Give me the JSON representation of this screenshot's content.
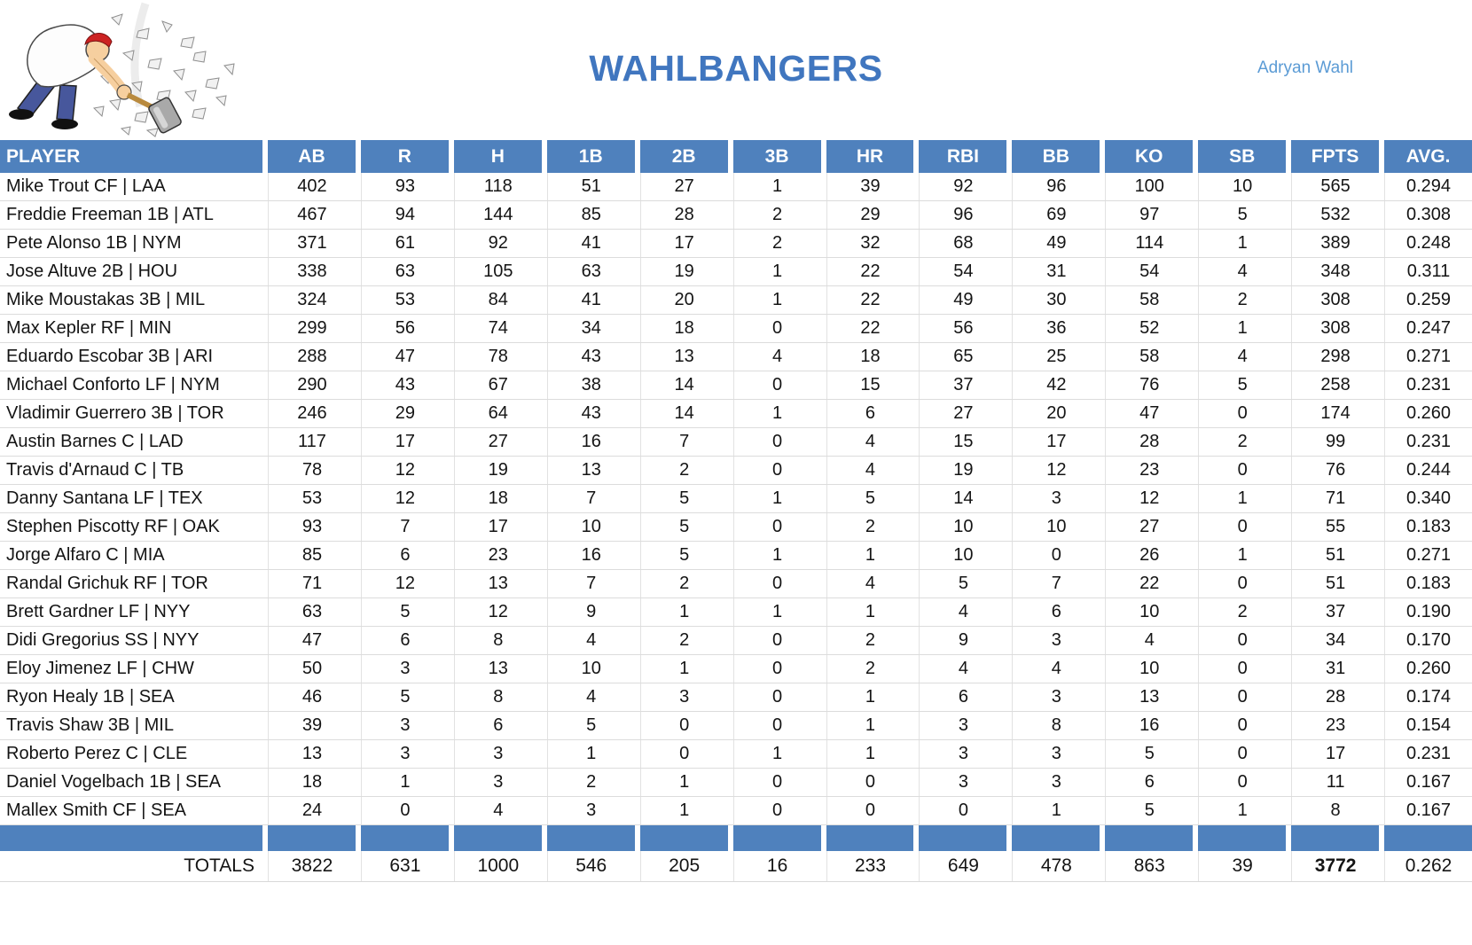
{
  "header": {
    "team_name": "WAHLBANGERS",
    "owner_name": "Adryan Wahl"
  },
  "colors": {
    "accent": "#4f81bd",
    "title_blue": "#4076bf",
    "owner_blue": "#5b9bd5"
  },
  "icons": {
    "logo": "hammer-man-smashing-rocks"
  },
  "table": {
    "columns": [
      "PLAYER",
      "AB",
      "R",
      "H",
      "1B",
      "2B",
      "3B",
      "HR",
      "RBI",
      "BB",
      "KO",
      "SB",
      "FPTS",
      "AVG."
    ],
    "rows": [
      {
        "player": "Mike Trout CF | LAA",
        "stats": [
          "402",
          "93",
          "118",
          "51",
          "27",
          "1",
          "39",
          "92",
          "96",
          "100",
          "10",
          "565",
          "0.294"
        ]
      },
      {
        "player": "Freddie Freeman 1B | ATL",
        "stats": [
          "467",
          "94",
          "144",
          "85",
          "28",
          "2",
          "29",
          "96",
          "69",
          "97",
          "5",
          "532",
          "0.308"
        ]
      },
      {
        "player": "Pete Alonso 1B | NYM",
        "stats": [
          "371",
          "61",
          "92",
          "41",
          "17",
          "2",
          "32",
          "68",
          "49",
          "114",
          "1",
          "389",
          "0.248"
        ]
      },
      {
        "player": "Jose Altuve 2B | HOU",
        "stats": [
          "338",
          "63",
          "105",
          "63",
          "19",
          "1",
          "22",
          "54",
          "31",
          "54",
          "4",
          "348",
          "0.311"
        ]
      },
      {
        "player": "Mike Moustakas 3B | MIL",
        "stats": [
          "324",
          "53",
          "84",
          "41",
          "20",
          "1",
          "22",
          "49",
          "30",
          "58",
          "2",
          "308",
          "0.259"
        ]
      },
      {
        "player": "Max Kepler RF | MIN",
        "stats": [
          "299",
          "56",
          "74",
          "34",
          "18",
          "0",
          "22",
          "56",
          "36",
          "52",
          "1",
          "308",
          "0.247"
        ]
      },
      {
        "player": "Eduardo Escobar 3B | ARI",
        "stats": [
          "288",
          "47",
          "78",
          "43",
          "13",
          "4",
          "18",
          "65",
          "25",
          "58",
          "4",
          "298",
          "0.271"
        ]
      },
      {
        "player": "Michael Conforto LF | NYM",
        "stats": [
          "290",
          "43",
          "67",
          "38",
          "14",
          "0",
          "15",
          "37",
          "42",
          "76",
          "5",
          "258",
          "0.231"
        ]
      },
      {
        "player": "Vladimir Guerrero 3B | TOR",
        "stats": [
          "246",
          "29",
          "64",
          "43",
          "14",
          "1",
          "6",
          "27",
          "20",
          "47",
          "0",
          "174",
          "0.260"
        ]
      },
      {
        "player": "Austin Barnes C | LAD",
        "stats": [
          "117",
          "17",
          "27",
          "16",
          "7",
          "0",
          "4",
          "15",
          "17",
          "28",
          "2",
          "99",
          "0.231"
        ]
      },
      {
        "player": "Travis d'Arnaud C | TB",
        "stats": [
          "78",
          "12",
          "19",
          "13",
          "2",
          "0",
          "4",
          "19",
          "12",
          "23",
          "0",
          "76",
          "0.244"
        ]
      },
      {
        "player": "Danny Santana LF | TEX",
        "stats": [
          "53",
          "12",
          "18",
          "7",
          "5",
          "1",
          "5",
          "14",
          "3",
          "12",
          "1",
          "71",
          "0.340"
        ]
      },
      {
        "player": "Stephen Piscotty RF | OAK",
        "stats": [
          "93",
          "7",
          "17",
          "10",
          "5",
          "0",
          "2",
          "10",
          "10",
          "27",
          "0",
          "55",
          "0.183"
        ]
      },
      {
        "player": "Jorge Alfaro C | MIA",
        "stats": [
          "85",
          "6",
          "23",
          "16",
          "5",
          "1",
          "1",
          "10",
          "0",
          "26",
          "1",
          "51",
          "0.271"
        ]
      },
      {
        "player": "Randal Grichuk RF | TOR",
        "stats": [
          "71",
          "12",
          "13",
          "7",
          "2",
          "0",
          "4",
          "5",
          "7",
          "22",
          "0",
          "51",
          "0.183"
        ]
      },
      {
        "player": "Brett Gardner LF | NYY",
        "stats": [
          "63",
          "5",
          "12",
          "9",
          "1",
          "1",
          "1",
          "4",
          "6",
          "10",
          "2",
          "37",
          "0.190"
        ]
      },
      {
        "player": "Didi Gregorius SS | NYY",
        "stats": [
          "47",
          "6",
          "8",
          "4",
          "2",
          "0",
          "2",
          "9",
          "3",
          "4",
          "0",
          "34",
          "0.170"
        ]
      },
      {
        "player": "Eloy Jimenez LF | CHW",
        "stats": [
          "50",
          "3",
          "13",
          "10",
          "1",
          "0",
          "2",
          "4",
          "4",
          "10",
          "0",
          "31",
          "0.260"
        ]
      },
      {
        "player": "Ryon Healy 1B | SEA",
        "stats": [
          "46",
          "5",
          "8",
          "4",
          "3",
          "0",
          "1",
          "6",
          "3",
          "13",
          "0",
          "28",
          "0.174"
        ]
      },
      {
        "player": "Travis Shaw 3B | MIL",
        "stats": [
          "39",
          "3",
          "6",
          "5",
          "0",
          "0",
          "1",
          "3",
          "8",
          "16",
          "0",
          "23",
          "0.154"
        ]
      },
      {
        "player": "Roberto Perez C | CLE",
        "stats": [
          "13",
          "3",
          "3",
          "1",
          "0",
          "1",
          "1",
          "3",
          "3",
          "5",
          "0",
          "17",
          "0.231"
        ]
      },
      {
        "player": "Daniel Vogelbach 1B | SEA",
        "stats": [
          "18",
          "1",
          "3",
          "2",
          "1",
          "0",
          "0",
          "3",
          "3",
          "6",
          "0",
          "11",
          "0.167"
        ]
      },
      {
        "player": "Mallex Smith CF | SEA",
        "stats": [
          "24",
          "0",
          "4",
          "3",
          "1",
          "0",
          "0",
          "0",
          "1",
          "5",
          "1",
          "8",
          "0.167"
        ]
      }
    ],
    "totals": {
      "label": "TOTALS",
      "values": [
        "3822",
        "631",
        "1000",
        "546",
        "205",
        "16",
        "233",
        "649",
        "478",
        "863",
        "39",
        "3772",
        "0.262"
      ]
    }
  }
}
